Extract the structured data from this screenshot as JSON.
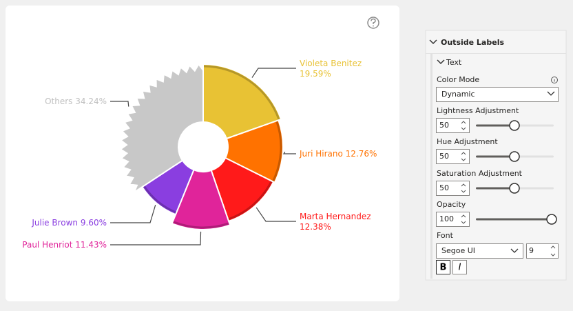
{
  "chart_data": {
    "type": "pie",
    "categories": [
      "Violeta Benitez",
      "Juri Hirano",
      "Marta Hernandez",
      "Paul Henriot",
      "Julie Brown",
      "Others"
    ],
    "values": [
      19.59,
      12.76,
      12.38,
      11.43,
      9.6,
      34.24
    ],
    "value_labels": [
      "19.59%",
      "12.76%",
      "12.38%",
      "11.43%",
      "9.60%",
      "34.24%"
    ],
    "colors": [
      "#e8c234",
      "#ff7200",
      "#ff1a1a",
      "#e0249a",
      "#8a3ee0",
      "#c8c8c8"
    ]
  },
  "panel": {
    "title": "Outside Labels",
    "section": "Text",
    "color_mode": {
      "label": "Color Mode",
      "value": "Dynamic"
    },
    "lightness": {
      "label": "Lightness Adjustment",
      "value": 50
    },
    "hue": {
      "label": "Hue Adjustment",
      "value": 50
    },
    "saturation": {
      "label": "Saturation Adjustment",
      "value": 50
    },
    "opacity": {
      "label": "Opacity",
      "value": 100
    },
    "font": {
      "label": "Font",
      "family": "Segoe UI",
      "size": "9",
      "bold": "B",
      "italic": "I"
    }
  }
}
